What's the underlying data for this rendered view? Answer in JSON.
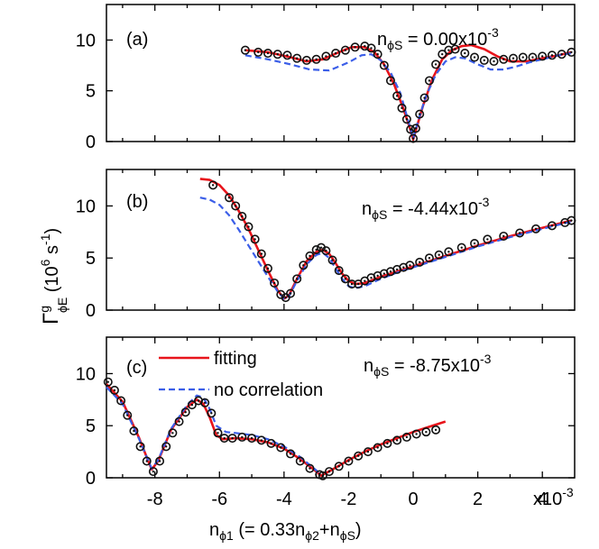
{
  "chart_data": {
    "type": "scatter",
    "xlabel": {
      "pre": "n",
      "sub": "ϕ1",
      "mid": " (= 0.33n",
      "sub2": "ϕ2",
      "plus": "+n",
      "sub3": "ϕS",
      "post": ")"
    },
    "ylabel": {
      "main": "Γ",
      "sup": "g",
      "sub": "ϕE",
      "unit_open": " (10",
      "unit_sup6": "6",
      "unit_s": " s",
      "unit_supm1": "-1",
      "unit_close": ")"
    },
    "xlim": [
      -9.5,
      5
    ],
    "x_ticks": [
      -8,
      -6,
      -4,
      -2,
      0,
      2,
      4
    ],
    "x_tick_labels": [
      "-8",
      "-6",
      "-4",
      "-2",
      "0",
      "2",
      "4"
    ],
    "x_multiplier": {
      "base": "x10",
      "exp": "-3"
    },
    "ylim": [
      0,
      13.5
    ],
    "y_ticks": [
      0,
      5,
      10
    ],
    "y_tick_labels": [
      "0",
      "5",
      "10"
    ],
    "legend": {
      "position": "top-left of panel (c)",
      "entries": [
        {
          "label": "fitting",
          "color": "#e8141b",
          "style": "solid"
        },
        {
          "label": "no correlation",
          "color": "#3b5ee8",
          "style": "dashed"
        }
      ]
    },
    "panels": [
      {
        "label": "(a)",
        "annotation": {
          "pre": "n",
          "sub": "ϕS",
          "val": " = 0.00x10",
          "exp": "-3"
        },
        "series": [
          {
            "name": "data",
            "kind": "markers",
            "x": [
              -5.2,
              -4.8,
              -4.5,
              -4.2,
              -3.9,
              -3.6,
              -3.3,
              -3.0,
              -2.7,
              -2.4,
              -2.1,
              -1.8,
              -1.5,
              -1.3,
              -1.1,
              -0.9,
              -0.7,
              -0.5,
              -0.35,
              -0.2,
              -0.08,
              0.0,
              0.08,
              0.2,
              0.35,
              0.5,
              0.7,
              0.9,
              1.1,
              1.3,
              1.6,
              1.9,
              2.2,
              2.5,
              2.8,
              3.1,
              3.4,
              3.7,
              4.0,
              4.3,
              4.6,
              4.9
            ],
            "y": [
              9.0,
              8.8,
              8.7,
              8.6,
              8.5,
              8.2,
              8.0,
              8.1,
              8.4,
              8.7,
              9.0,
              9.3,
              9.4,
              9.2,
              8.6,
              7.5,
              6.0,
              4.5,
              3.3,
              2.2,
              1.2,
              0.3,
              1.3,
              2.7,
              4.3,
              6.0,
              7.6,
              8.6,
              9.0,
              9.1,
              8.7,
              8.3,
              8.0,
              7.9,
              8.1,
              8.2,
              8.3,
              8.3,
              8.4,
              8.5,
              8.6,
              8.8
            ]
          },
          {
            "name": "fitting",
            "kind": "line",
            "color": "#e8141b",
            "x": [
              -5.2,
              -4.5,
              -3.8,
              -3.3,
              -2.8,
              -2.3,
              -1.9,
              -1.5,
              -1.2,
              -0.9,
              -0.6,
              -0.3,
              -0.1,
              0.0,
              0.1,
              0.3,
              0.6,
              0.9,
              1.2,
              1.5,
              1.8,
              2.2,
              2.6,
              3.0,
              3.5,
              4.0,
              4.5,
              4.9
            ],
            "y": [
              9.0,
              8.8,
              8.3,
              7.9,
              8.1,
              8.8,
              9.3,
              9.3,
              8.8,
              7.6,
              5.7,
              3.2,
              1.3,
              0.2,
              1.3,
              3.5,
              6.2,
              8.1,
              9.0,
              9.4,
              9.5,
              9.1,
              8.4,
              7.9,
              7.9,
              8.2,
              8.5,
              8.8
            ]
          },
          {
            "name": "no correlation",
            "kind": "line",
            "color": "#3b5ee8",
            "x": [
              -5.2,
              -4.5,
              -3.8,
              -3.2,
              -2.6,
              -2.0,
              -1.6,
              -1.3,
              -1.0,
              -0.7,
              -0.4,
              -0.15,
              0.0,
              0.15,
              0.4,
              0.7,
              1.0,
              1.3,
              1.6,
              2.0,
              2.4,
              2.8,
              3.2,
              3.6,
              4.0,
              4.5,
              4.9
            ],
            "y": [
              8.5,
              8.1,
              7.6,
              7.1,
              7.0,
              7.8,
              8.5,
              8.6,
              8.0,
              6.8,
              4.8,
              2.0,
              0.3,
              2.0,
              4.5,
              6.6,
              7.9,
              8.3,
              8.2,
              7.6,
              7.1,
              7.1,
              7.4,
              7.8,
              8.1,
              8.5,
              8.7
            ]
          }
        ]
      },
      {
        "label": "(b)",
        "annotation": {
          "pre": "n",
          "sub": "ϕS",
          "val": " = -4.44x10",
          "exp": "-3"
        },
        "series": [
          {
            "name": "data",
            "kind": "markers",
            "x": [
              -6.2,
              -5.7,
              -5.5,
              -5.3,
              -5.1,
              -4.9,
              -4.7,
              -4.5,
              -4.3,
              -4.1,
              -3.95,
              -3.8,
              -3.6,
              -3.4,
              -3.2,
              -3.0,
              -2.85,
              -2.7,
              -2.5,
              -2.3,
              -2.1,
              -1.9,
              -1.7,
              -1.5,
              -1.3,
              -1.1,
              -0.9,
              -0.7,
              -0.5,
              -0.3,
              -0.1,
              0.2,
              0.5,
              0.8,
              1.1,
              1.5,
              1.9,
              2.3,
              2.8,
              3.3,
              3.8,
              4.3,
              4.7,
              4.9
            ],
            "y": [
              12.0,
              10.8,
              10.0,
              9.0,
              8.0,
              6.8,
              5.4,
              4.0,
              2.6,
              1.5,
              1.2,
              1.6,
              3.0,
              4.3,
              5.2,
              5.8,
              6.0,
              5.7,
              4.8,
              3.8,
              3.0,
              2.5,
              2.5,
              2.8,
              3.1,
              3.3,
              3.5,
              3.7,
              3.9,
              4.1,
              4.3,
              4.6,
              5.0,
              5.3,
              5.6,
              6.0,
              6.4,
              6.8,
              7.1,
              7.4,
              7.8,
              8.1,
              8.4,
              8.6
            ]
          },
          {
            "name": "fitting",
            "kind": "line",
            "color": "#e8141b",
            "x": [
              -6.6,
              -6.3,
              -6.0,
              -5.7,
              -5.4,
              -5.1,
              -4.8,
              -4.5,
              -4.2,
              -4.0,
              -3.85,
              -3.6,
              -3.3,
              -3.0,
              -2.8,
              -2.6,
              -2.4,
              -2.2,
              -2.0,
              -1.8,
              -1.5,
              -1.0,
              -0.5,
              0.0,
              0.5,
              1.0,
              2.0,
              3.0,
              4.0,
              4.9
            ],
            "y": [
              12.6,
              12.5,
              12.0,
              11.0,
              9.5,
              7.8,
              5.8,
              3.8,
              1.9,
              1.1,
              1.4,
              3.0,
              4.7,
              5.6,
              5.8,
              5.4,
              4.5,
              3.5,
              2.8,
              2.5,
              2.6,
              3.2,
              3.7,
              4.2,
              4.7,
              5.2,
              6.2,
              7.1,
              7.9,
              8.6
            ]
          },
          {
            "name": "no correlation",
            "kind": "line",
            "color": "#3b5ee8",
            "x": [
              -6.6,
              -6.3,
              -6.0,
              -5.7,
              -5.4,
              -5.1,
              -4.8,
              -4.5,
              -4.2,
              -4.0,
              -3.85,
              -3.6,
              -3.3,
              -3.0,
              -2.8,
              -2.6,
              -2.4,
              -2.2,
              -2.0,
              -1.8,
              -1.5,
              -1.0,
              -0.5,
              0.0,
              0.5,
              1.0,
              2.0,
              3.0,
              4.0,
              4.9
            ],
            "y": [
              10.8,
              10.6,
              10.1,
              9.1,
              7.7,
              6.2,
              4.7,
              3.2,
              1.8,
              1.1,
              1.3,
              2.8,
              4.4,
              5.3,
              5.5,
              5.0,
              4.0,
              3.0,
              2.3,
              2.1,
              2.3,
              3.0,
              3.6,
              4.1,
              4.6,
              5.1,
              6.1,
              7.0,
              7.8,
              8.5
            ]
          }
        ]
      },
      {
        "label": "(c)",
        "annotation": {
          "pre": "n",
          "sub": "ϕS",
          "val": " = -8.75x10",
          "exp": "-3"
        },
        "series": [
          {
            "name": "data",
            "kind": "markers",
            "x": [
              -9.45,
              -9.25,
              -9.05,
              -8.85,
              -8.65,
              -8.45,
              -8.25,
              -8.05,
              -7.85,
              -7.65,
              -7.45,
              -7.25,
              -7.05,
              -6.85,
              -6.65,
              -6.45,
              -6.25,
              -6.05,
              -5.85,
              -5.6,
              -5.3,
              -5.0,
              -4.7,
              -4.4,
              -4.1,
              -3.8,
              -3.5,
              -3.2,
              -2.9,
              -2.8,
              -2.6,
              -2.3,
              -2.0,
              -1.7,
              -1.4,
              -1.1,
              -0.8,
              -0.5,
              -0.2,
              0.1,
              0.4,
              0.7
            ],
            "y": [
              9.2,
              8.4,
              7.4,
              6.0,
              4.5,
              3.0,
              1.6,
              0.6,
              1.6,
              3.0,
              4.3,
              5.4,
              6.3,
              7.0,
              7.4,
              7.2,
              6.2,
              4.3,
              3.8,
              3.8,
              3.9,
              3.8,
              3.6,
              3.3,
              2.9,
              2.3,
              1.6,
              0.9,
              0.3,
              0.2,
              0.6,
              1.1,
              1.6,
              2.1,
              2.5,
              2.9,
              3.3,
              3.6,
              3.9,
              4.2,
              4.4,
              4.6
            ]
          },
          {
            "name": "fitting",
            "kind": "line",
            "color": "#e8141b",
            "x": [
              -9.5,
              -9.0,
              -8.5,
              -8.1,
              -7.9,
              -7.5,
              -7.0,
              -6.7,
              -6.5,
              -6.3,
              -6.1,
              -5.9,
              -5.5,
              -5.0,
              -4.5,
              -4.0,
              -3.5,
              -3.0,
              -2.85,
              -2.5,
              -2.0,
              -1.5,
              -1.0,
              -0.5,
              0.0,
              0.5,
              1.0
            ],
            "y": [
              9.0,
              7.3,
              3.9,
              0.8,
              1.6,
              4.6,
              6.8,
              7.5,
              7.1,
              5.8,
              4.1,
              3.7,
              3.8,
              3.7,
              3.4,
              2.8,
              1.8,
              0.6,
              0.2,
              0.8,
              1.7,
              2.5,
              3.2,
              3.8,
              4.4,
              4.9,
              5.4
            ]
          },
          {
            "name": "no correlation",
            "kind": "line",
            "color": "#3b5ee8",
            "x": [
              -9.5,
              -9.0,
              -8.5,
              -8.1,
              -7.9,
              -7.5,
              -7.0,
              -6.7,
              -6.5,
              -6.3,
              -6.1,
              -5.8,
              -5.5,
              -5.0,
              -4.5,
              -4.0,
              -3.5,
              -3.0,
              -2.85
            ],
            "y": [
              8.7,
              7.1,
              3.8,
              0.9,
              1.7,
              4.7,
              7.0,
              7.9,
              7.7,
              6.6,
              5.0,
              4.4,
              4.3,
              4.1,
              3.7,
              3.0,
              2.0,
              0.7,
              0.3
            ]
          }
        ]
      }
    ]
  }
}
